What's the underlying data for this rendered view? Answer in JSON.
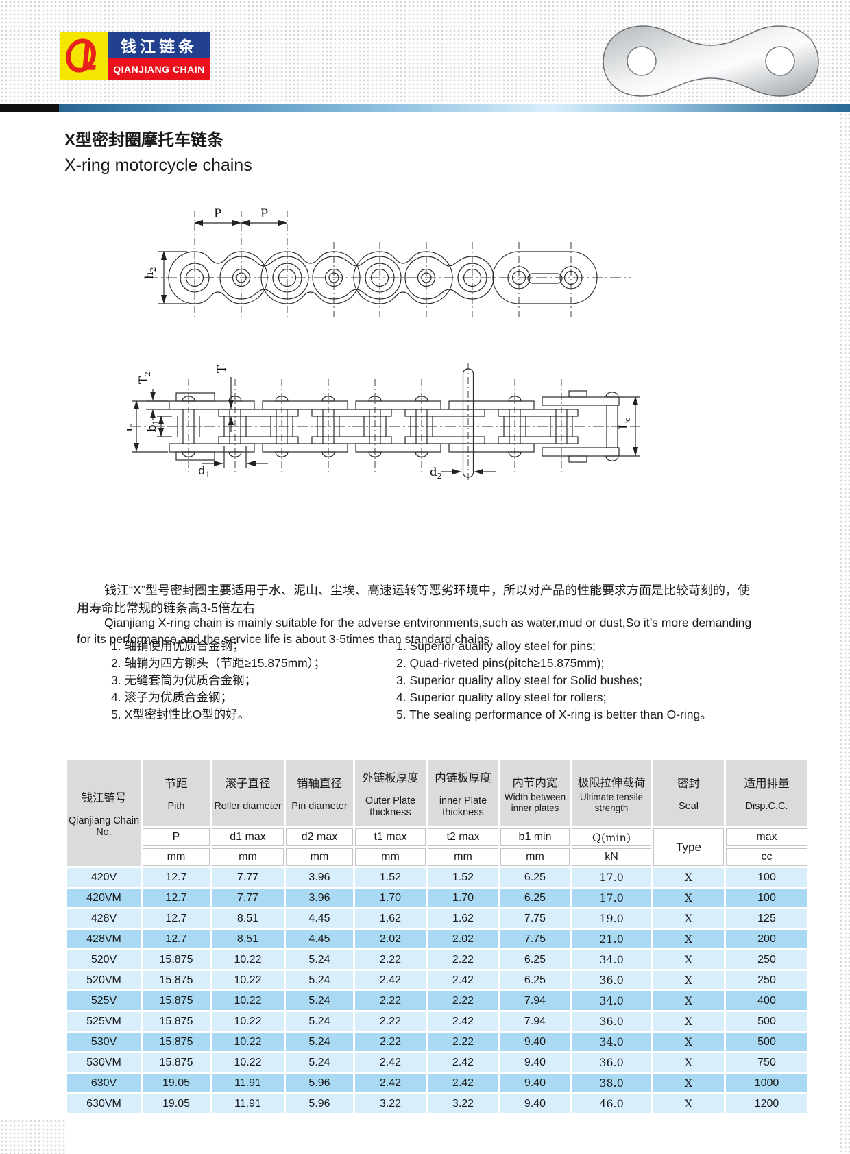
{
  "logo": {
    "monogram": "QL",
    "name_cn": "钱江链条",
    "name_en": "QIANJIANG CHAIN"
  },
  "header": {
    "title_cn": "X型密封圈摩托车链条",
    "title_en": "X-ring motorcycle chains"
  },
  "intro": {
    "cn": "钱江“X”型号密封圈主要适用于水、泥山、尘埃、高速运转等恶劣环境中，所以对产品的性能要求方面是比较苛刻的，使用寿命比常规的链条高3-5倍左右",
    "en": "Qianjiang X-ring chain is mainly suitable for the adverse entvironments,such as water,mud or dust,So it’s more demanding for its performance,and the service life is about 3-5times than standard chains."
  },
  "features": {
    "cn": [
      "1. 轴销使用优质合金钢；",
      "2. 轴销为四方铆头（节距≥15.875mm）；",
      "3. 无缝套筒为优质合金钢；",
      "4. 滚子为优质合金钢；",
      "5. X型密封性比O型的好。"
    ],
    "en": [
      "1. Superior auality alloy steel for pins;",
      "2. Quad-riveted pins(pitch≥15.875mm);",
      "3. Superior quality alloy steel for Solid bushes;",
      "4. Superior quality alloy steel for rollers;",
      "5. The sealing performance of X-ring is better than O-ring。"
    ]
  },
  "drawings": {
    "top_view": {
      "p1": "P",
      "p2": "P",
      "h2": {
        "b": "h",
        "s": "2"
      }
    },
    "side_view": {
      "t2": {
        "b": "T",
        "s": "2"
      },
      "t1": {
        "b": "T",
        "s": "1"
      },
      "l": "L",
      "b1": {
        "b": "b",
        "s": "1"
      },
      "d1": {
        "b": "d",
        "s": "1"
      },
      "d2": {
        "b": "d",
        "s": "2"
      },
      "lc": {
        "b": "L",
        "s": "c"
      }
    }
  },
  "table": {
    "columns": [
      {
        "cn": "钱江链号",
        "en": "Qianjiang Chain No.",
        "sub": "",
        "unit": ""
      },
      {
        "cn": "节距",
        "en": "Pith",
        "sub": "P",
        "unit": "mm"
      },
      {
        "cn": "滚子直径",
        "en": "Roller diameter",
        "sub": "d1 max",
        "unit": "mm"
      },
      {
        "cn": "销轴直径",
        "en": "Pin diameter",
        "sub": "d2 max",
        "unit": "mm"
      },
      {
        "cn": "外链板厚度",
        "en": "Outer Plate thickness",
        "sub": "t1 max",
        "unit": "mm"
      },
      {
        "cn": "内链板厚度",
        "en": "inner Plate thickness",
        "sub": "t2 max",
        "unit": "mm"
      },
      {
        "cn": "内节内宽",
        "en": "Width between inner plates",
        "sub": "b1 min",
        "unit": "mm"
      },
      {
        "cn": "极限拉伸载荷",
        "en": "Ultimate tensile strength",
        "sub": "Q(min)",
        "unit": "kN"
      },
      {
        "cn": "密封",
        "en": "Seal",
        "sub": "Type",
        "unit": ""
      },
      {
        "cn": "适用排量",
        "en": "Disp.C.C.",
        "sub": "max",
        "unit": "cc"
      }
    ],
    "rows": [
      {
        "model": "420V",
        "values": [
          "12.7",
          "7.77",
          "3.96",
          "1.52",
          "1.52",
          "6.25",
          "17.0",
          "X",
          "100"
        ],
        "shaded": false
      },
      {
        "model": "420VM",
        "values": [
          "12.7",
          "7.77",
          "3.96",
          "1.70",
          "1.70",
          "6.25",
          "17.0",
          "X",
          "100"
        ],
        "shaded": true
      },
      {
        "model": "428V",
        "values": [
          "12.7",
          "8.51",
          "4.45",
          "1.62",
          "1.62",
          "7.75",
          "19.0",
          "X",
          "125"
        ],
        "shaded": false
      },
      {
        "model": "428VM",
        "values": [
          "12.7",
          "8.51",
          "4.45",
          "2.02",
          "2.02",
          "7.75",
          "21.0",
          "X",
          "200"
        ],
        "shaded": true
      },
      {
        "model": "520V",
        "values": [
          "15.875",
          "10.22",
          "5.24",
          "2.22",
          "2.22",
          "6.25",
          "34.0",
          "X",
          "250"
        ],
        "shaded": false
      },
      {
        "model": "520VM",
        "values": [
          "15.875",
          "10.22",
          "5.24",
          "2.42",
          "2.42",
          "6.25",
          "36.0",
          "X",
          "250"
        ],
        "shaded": false
      },
      {
        "model": "525V",
        "values": [
          "15.875",
          "10.22",
          "5.24",
          "2.22",
          "2.22",
          "7.94",
          "34.0",
          "X",
          "400"
        ],
        "shaded": true
      },
      {
        "model": "525VM",
        "values": [
          "15.875",
          "10.22",
          "5.24",
          "2.22",
          "2.42",
          "7.94",
          "36.0",
          "X",
          "500"
        ],
        "shaded": false
      },
      {
        "model": "530V",
        "values": [
          "15.875",
          "10.22",
          "5.24",
          "2.22",
          "2.22",
          "9.40",
          "34.0",
          "X",
          "500"
        ],
        "shaded": true
      },
      {
        "model": "530VM",
        "values": [
          "15.875",
          "10.22",
          "5.24",
          "2.42",
          "2.42",
          "9.40",
          "36.0",
          "X",
          "750"
        ],
        "shaded": false
      },
      {
        "model": "630V",
        "values": [
          "19.05",
          "11.91",
          "5.96",
          "2.42",
          "2.42",
          "9.40",
          "38.0",
          "X",
          "1000"
        ],
        "shaded": true
      },
      {
        "model": "630VM",
        "values": [
          "19.05",
          "11.91",
          "5.96",
          "3.22",
          "3.22",
          "9.40",
          "46.0",
          "X",
          "1200"
        ],
        "shaded": false
      }
    ],
    "colors": {
      "row_light": "#d9eefb",
      "row_shaded": "#a9d9f3",
      "header_gray": "#dbdbdb",
      "logo_blue": "#21418e",
      "logo_red": "#e8111c",
      "logo_yellow": "#f4e600",
      "bar_blue": "#2a6e9e"
    }
  }
}
